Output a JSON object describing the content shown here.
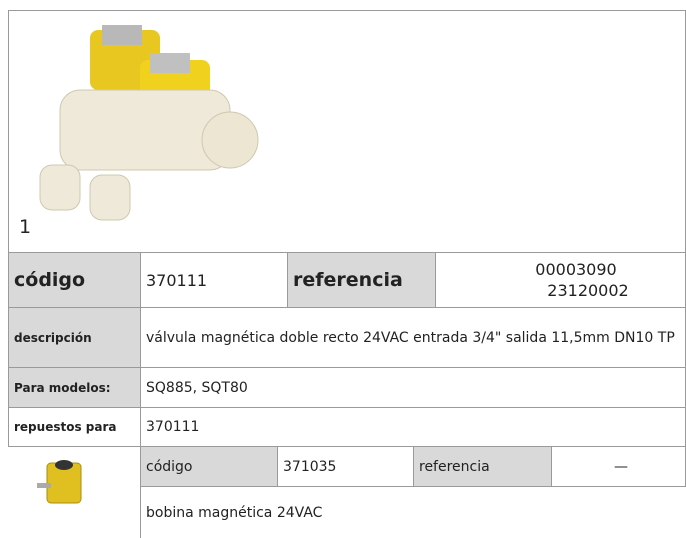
{
  "product": {
    "number": "1",
    "codigo_label": "código",
    "codigo": "370111",
    "referencia_label": "referencia",
    "referencia": [
      "00003090",
      "23120002"
    ],
    "descripcion_label": "descripción",
    "descripcion": "válvula magnética  doble recto 24VAC entrada 3/4\" salida 11,5mm DN10 TP",
    "modelos_label": "Para modelos:",
    "modelos": "SQ885, SQT80",
    "repuestos_label": "repuestos para",
    "repuestos": "370111"
  },
  "spare_part": {
    "codigo_label": "código",
    "codigo": "371035",
    "referencia_label": "referencia",
    "referencia": "—",
    "descripcion": "bobina magnética  24VAC"
  }
}
